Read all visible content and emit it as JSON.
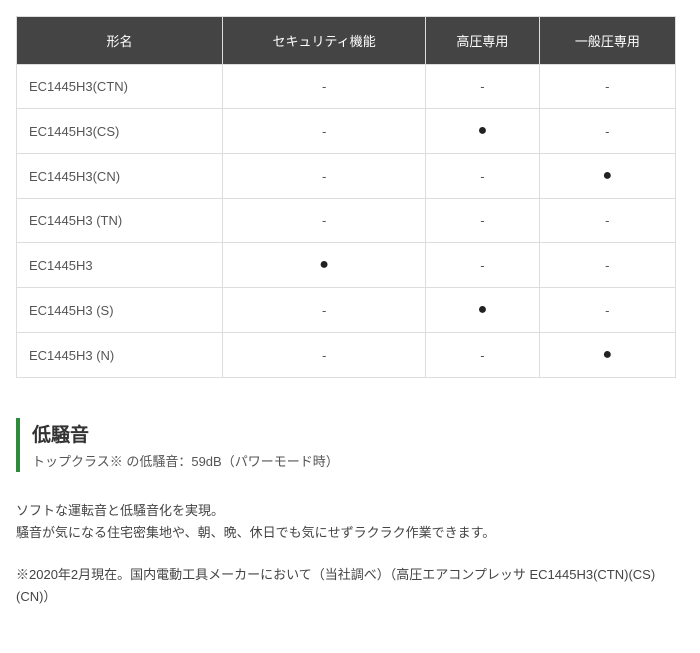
{
  "table": {
    "columns": [
      "形名",
      "セキュリティ機能",
      "高圧専用",
      "一般圧専用"
    ],
    "rows": [
      {
        "model": "EC1445H3(CTN)",
        "security": "-",
        "high": "-",
        "std": "-"
      },
      {
        "model": "EC1445H3(CS)",
        "security": "-",
        "high": "●",
        "std": "-"
      },
      {
        "model": "EC1445H3(CN)",
        "security": "-",
        "high": "-",
        "std": "●"
      },
      {
        "model": "EC1445H3 (TN)",
        "security": "-",
        "high": "-",
        "std": "-"
      },
      {
        "model": "EC1445H3",
        "security": "●",
        "high": "-",
        "std": "-"
      },
      {
        "model": "EC1445H3 (S)",
        "security": "-",
        "high": "●",
        "std": "-"
      },
      {
        "model": "EC1445H3 (N)",
        "security": "-",
        "high": "-",
        "std": "●"
      }
    ],
    "header_bg": "#444444",
    "header_fg": "#ffffff",
    "cell_border": "#dddddd",
    "accent_color": "#2e8b3c"
  },
  "heading": {
    "title": "低騒音",
    "subtitle": "トップクラス※ の低騒音：59dB（パワーモード時）"
  },
  "body_text": {
    "line1": "ソフトな運転音と低騒音化を実現。",
    "line2": "騒音が気になる住宅密集地や、朝、晩、休日でも気にせずラクラク作業できます。"
  },
  "footnote": "※2020年2月現在。国内電動工具メーカーにおいて（当社調べ）（高圧エアコンプレッサ EC1445H3(CTN)(CS)(CN)）"
}
